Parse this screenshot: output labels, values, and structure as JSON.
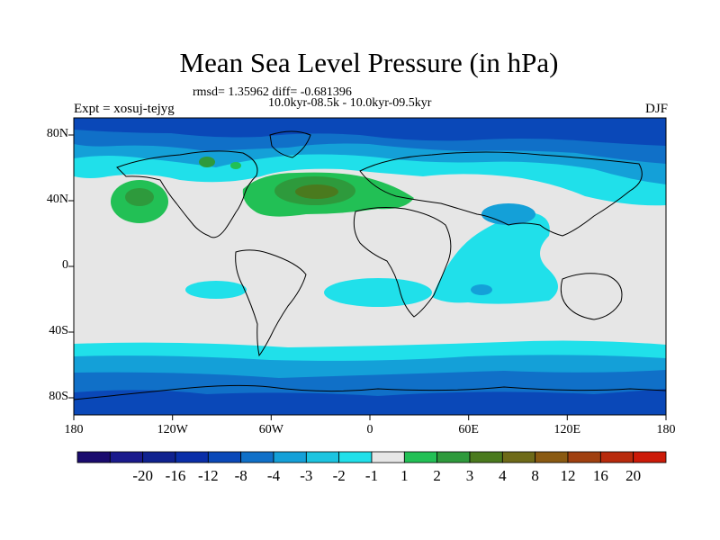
{
  "title": "Mean Sea Level Pressure (in hPa)",
  "stats": "rmsd= 1.35962 diff= -0.681396",
  "period": "10.0kyr-08.5k - 10.0kyr-09.5kyr",
  "experiment": "Expt = xosuj-tejyg",
  "season": "DJF",
  "latitude_labels": [
    "80N",
    "40N",
    "0",
    "40S",
    "80S"
  ],
  "longitude_labels": [
    "180",
    "120W",
    "60W",
    "0",
    "60E",
    "120E",
    "180"
  ],
  "colorbar": {
    "labels": [
      "-20",
      "-16",
      "-12",
      "-8",
      "-4",
      "-3",
      "-2",
      "-1",
      "1",
      "2",
      "3",
      "4",
      "8",
      "12",
      "16",
      "20"
    ],
    "colors": [
      "#1a0b6e",
      "#1a1a8c",
      "#10228f",
      "#0a2ea8",
      "#0a48b8",
      "#1070c8",
      "#14a0d8",
      "#1cc4e0",
      "#20e0ea",
      "#e6e6e6",
      "#22c055",
      "#2e9a3c",
      "#4a7a1e",
      "#6e6a18",
      "#8a5a12",
      "#a04010",
      "#b82a0c",
      "#cc1a08"
    ]
  },
  "colors": {
    "background_land_neutral": "#e6e6e6",
    "coast": "#000000"
  }
}
